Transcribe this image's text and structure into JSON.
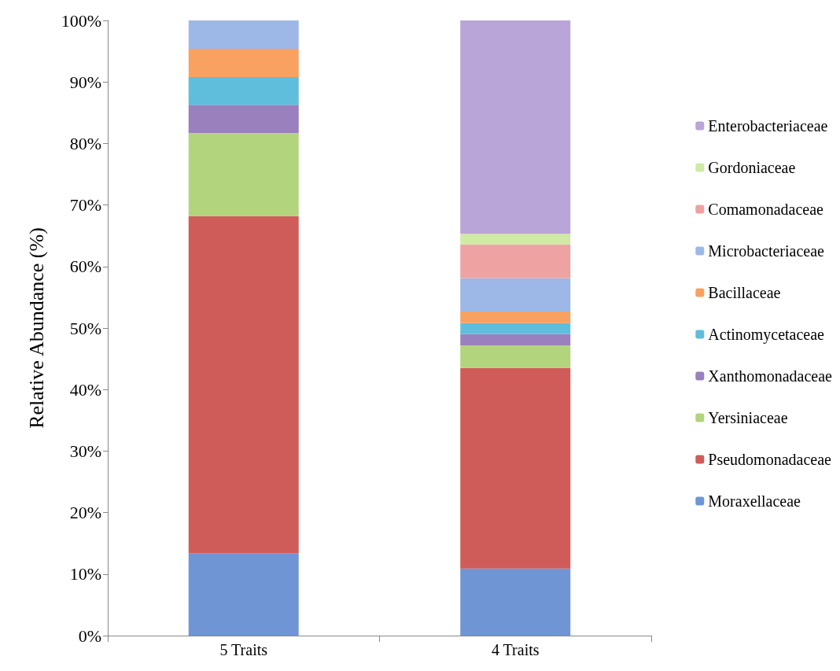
{
  "chart_data": {
    "type": "bar",
    "stacked": true,
    "ylabel": "Relative Abundance (%)",
    "categories": [
      "5 Traits",
      "4 Traits"
    ],
    "series": [
      {
        "name": "Moraxellaceae",
        "color": "#6f95d4",
        "values": [
          13.4,
          10.9
        ]
      },
      {
        "name": "Pseudomonadaceae",
        "color": "#d05c5a",
        "values": [
          54.8,
          32.6
        ]
      },
      {
        "name": "Yersiniaceae",
        "color": "#b2d47c",
        "values": [
          13.5,
          3.7
        ]
      },
      {
        "name": "Xanthomonadaceae",
        "color": "#9a80bd",
        "values": [
          4.6,
          1.8
        ]
      },
      {
        "name": "Actinomycetaceae",
        "color": "#5fbedc",
        "values": [
          4.5,
          1.8
        ]
      },
      {
        "name": "Bacillaceae",
        "color": "#f9a160",
        "values": [
          4.6,
          1.9
        ]
      },
      {
        "name": "Microbacteriaceae",
        "color": "#9db8e6",
        "values": [
          4.6,
          5.4
        ]
      },
      {
        "name": "Comamonadaceae",
        "color": "#eea2a2",
        "values": [
          0,
          5.5
        ]
      },
      {
        "name": "Gordoniaceae",
        "color": "#cfeaa5",
        "values": [
          0,
          1.7
        ]
      },
      {
        "name": "Enterobacteriaceae",
        "color": "#b9a5d8",
        "values": [
          0,
          34.7
        ]
      }
    ],
    "ylim": [
      0,
      100
    ],
    "yticks": [
      {
        "value": 0,
        "label": "0%"
      },
      {
        "value": 10,
        "label": "10%"
      },
      {
        "value": 20,
        "label": "20%"
      },
      {
        "value": 30,
        "label": "30%"
      },
      {
        "value": 40,
        "label": "40%"
      },
      {
        "value": 50,
        "label": "50%"
      },
      {
        "value": 60,
        "label": "60%"
      },
      {
        "value": 70,
        "label": "70%"
      },
      {
        "value": 80,
        "label": "80%"
      },
      {
        "value": 90,
        "label": "90%"
      },
      {
        "value": 100,
        "label": "100%"
      }
    ],
    "grid": false,
    "legend": "right"
  }
}
